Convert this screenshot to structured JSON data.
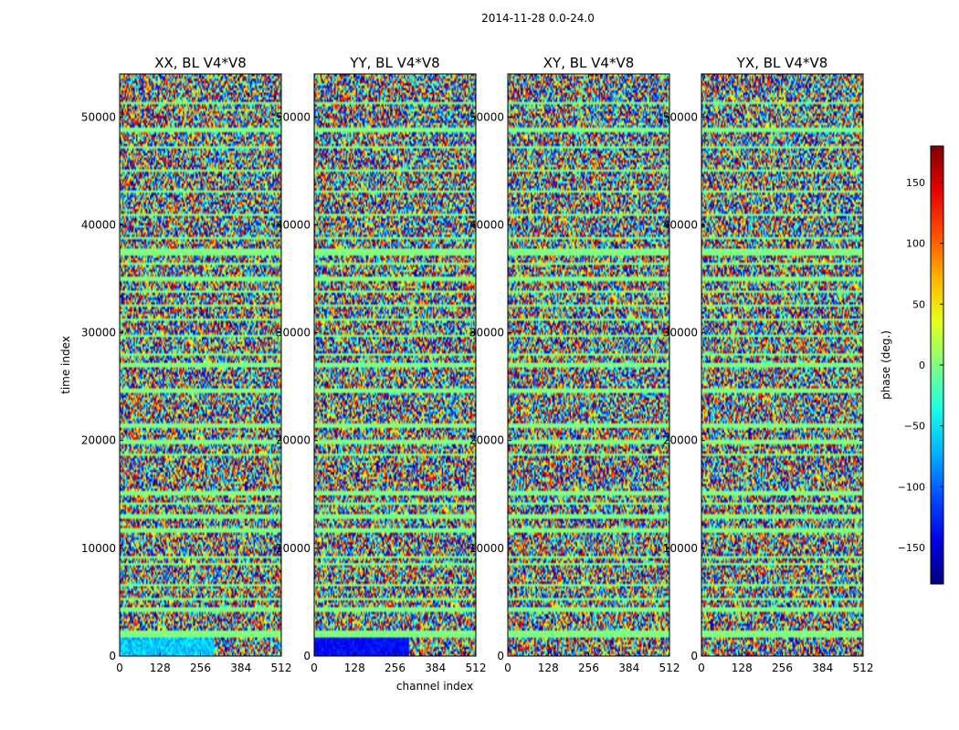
{
  "chart_data": {
    "type": "heatmap",
    "title": "2014-11-28 0.0-24.0",
    "xlabel": "channel index",
    "ylabel": "time index",
    "xlim": [
      0,
      512
    ],
    "ylim": [
      0,
      54000
    ],
    "xticks": [
      0,
      128,
      256,
      384,
      512
    ],
    "yticks": [
      0,
      10000,
      20000,
      30000,
      40000,
      50000
    ],
    "colorbar": {
      "label": "phase (deg.)",
      "range": [
        -180,
        180
      ],
      "ticks": [
        -150,
        -100,
        -50,
        0,
        50,
        100,
        150
      ],
      "colormap": "jet"
    },
    "panels": [
      {
        "title": "XX, BL V4*V8",
        "pol": "XX",
        "flagged_color": "#80ff80"
      },
      {
        "title": "YY, BL V4*V8",
        "pol": "YY",
        "flagged_color": "#80ff80"
      },
      {
        "title": "XY, BL V4*V8",
        "pol": "XY",
        "flagged_color": "#80ff80"
      },
      {
        "title": "YX, BL V4*V8",
        "pol": "YX",
        "flagged_color": "#80ff80"
      }
    ],
    "flag_bands_time": [
      [
        1800,
        2400
      ],
      [
        4200,
        4500
      ],
      [
        5200,
        5500
      ],
      [
        6400,
        6700
      ],
      [
        8400,
        8700
      ],
      [
        9000,
        9300
      ],
      [
        11500,
        11800
      ],
      [
        12800,
        13100
      ],
      [
        14000,
        14300
      ],
      [
        15000,
        15300
      ],
      [
        18500,
        18800
      ],
      [
        19600,
        20000
      ],
      [
        21200,
        21500
      ],
      [
        24500,
        24800
      ],
      [
        26800,
        27300
      ],
      [
        27800,
        28100
      ],
      [
        29500,
        29800
      ],
      [
        31000,
        31300
      ],
      [
        32400,
        32700
      ],
      [
        33600,
        33900
      ],
      [
        34800,
        35100
      ],
      [
        36200,
        36500
      ],
      [
        37200,
        37900
      ],
      [
        38600,
        38900
      ],
      [
        40800,
        41100
      ],
      [
        43000,
        43300
      ],
      [
        44900,
        45200
      ],
      [
        47000,
        47300
      ],
      [
        48700,
        49000
      ],
      [
        51200,
        51500
      ]
    ]
  }
}
